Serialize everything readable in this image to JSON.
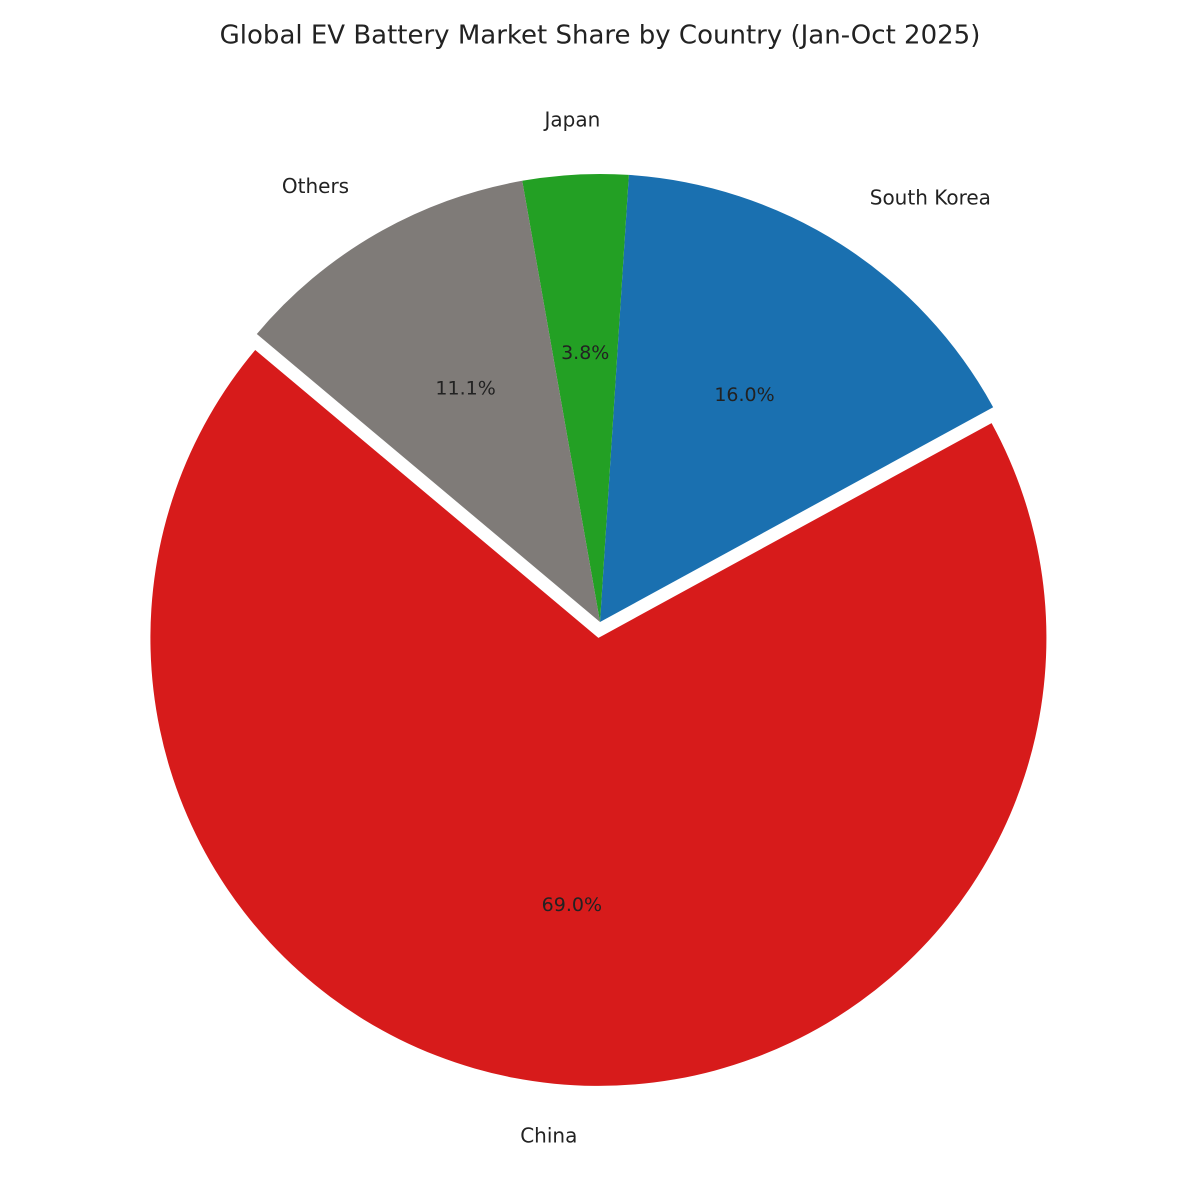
{
  "chart_data": {
    "type": "pie",
    "title": "Global EV Battery Market Share by Country (Jan-Oct 2025)",
    "categories": [
      "China",
      "South Korea",
      "Japan",
      "Others"
    ],
    "values": [
      69.0,
      16.0,
      3.8,
      11.1
    ],
    "value_labels": [
      "69.0%",
      "16.0%",
      "3.8%",
      "11.1%"
    ],
    "colors": [
      "#d71b1b",
      "#1a70b0",
      "#23a024",
      "#7f7b78"
    ]
  }
}
